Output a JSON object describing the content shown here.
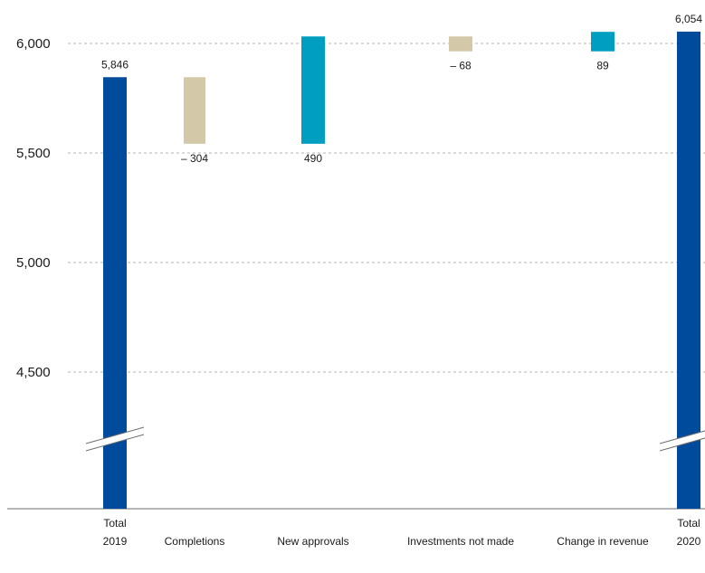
{
  "chart_data": {
    "type": "waterfall",
    "title": "",
    "xlabel": "",
    "ylabel": "",
    "y_ticks": [
      {
        "value": 6000,
        "label": "6,000"
      },
      {
        "value": 5500,
        "label": "5,500"
      },
      {
        "value": 5000,
        "label": "5,000"
      },
      {
        "value": 4500,
        "label": "4,500"
      }
    ],
    "axis_break": true,
    "grid": "horizontal dashed",
    "categories": [
      {
        "line1": "Total",
        "line2": "2019"
      },
      {
        "line1": "Completions",
        "line2": ""
      },
      {
        "line1": "New approvals",
        "line2": ""
      },
      {
        "line1": "Investments not made",
        "line2": ""
      },
      {
        "line1": "Change in revenue",
        "line2": ""
      },
      {
        "line1": "Total",
        "line2": "2020"
      }
    ],
    "values": [
      5846,
      -304,
      490,
      -68,
      89,
      6054
    ],
    "bar_kinds": [
      "total",
      "decrease",
      "increase",
      "decrease",
      "increase",
      "total"
    ],
    "value_labels": [
      "5,846",
      "– 304",
      "490",
      "– 68",
      "89",
      "6,054"
    ],
    "colors": {
      "total": "#004b9b",
      "increase": "#009fc2",
      "decrease": "#d3c9a8",
      "grid": "#b5b5b5",
      "axis": "#6e6e6e"
    }
  }
}
